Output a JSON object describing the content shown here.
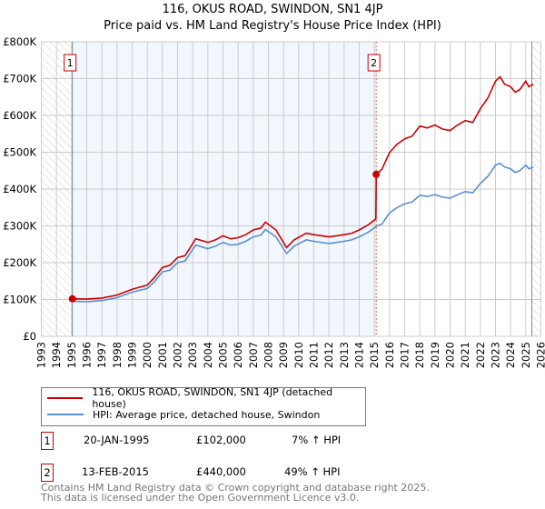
{
  "chart_data": {
    "type": "line",
    "title": "116, OKUS ROAD, SWINDON, SN1 4JP",
    "subtitle": "Price paid vs. HM Land Registry's House Price Index (HPI)",
    "xlim": [
      1993,
      2026
    ],
    "ylim": [
      0,
      800000
    ],
    "x_ticks": [
      "1993",
      "1994",
      "1995",
      "1996",
      "1997",
      "1998",
      "1999",
      "2000",
      "2001",
      "2002",
      "2003",
      "2004",
      "2005",
      "2006",
      "2007",
      "2008",
      "2009",
      "2010",
      "2011",
      "2012",
      "2013",
      "2014",
      "2015",
      "2016",
      "2017",
      "2018",
      "2019",
      "2020",
      "2021",
      "2022",
      "2023",
      "2024",
      "2025",
      "2026"
    ],
    "y_ticks": [
      {
        "value": 0,
        "label": "£0"
      },
      {
        "value": 100000,
        "label": "£100K"
      },
      {
        "value": 200000,
        "label": "£200K"
      },
      {
        "value": 300000,
        "label": "£300K"
      },
      {
        "value": 400000,
        "label": "£400K"
      },
      {
        "value": 500000,
        "label": "£500K"
      },
      {
        "value": 600000,
        "label": "£600K"
      },
      {
        "value": 700000,
        "label": "£700K"
      },
      {
        "value": 800000,
        "label": "£800K"
      }
    ],
    "grid": true,
    "series": [
      {
        "name": "116, OKUS ROAD, SWINDON, SN1 4JP (detached house)",
        "color": "#cc0000",
        "x": [
          1995.05,
          1996,
          1997,
          1998,
          1999,
          2000,
          2000.5,
          2001,
          2001.5,
          2002,
          2002.5,
          2003.2,
          2004,
          2004.5,
          2005,
          2005.5,
          2006,
          2006.5,
          2007,
          2007.5,
          2007.8,
          2008.5,
          2009.2,
          2009.7,
          2010.5,
          2011,
          2012,
          2012.5,
          2013,
          2013.5,
          2014,
          2014.6,
          2015.1,
          2015.12,
          2015.5,
          2016,
          2016.5,
          2017,
          2017.5,
          2018,
          2018.5,
          2019,
          2019.5,
          2020,
          2020.5,
          2021,
          2021.5,
          2022,
          2022.5,
          2023,
          2023.3,
          2023.6,
          2024,
          2024.3,
          2024.6,
          2025,
          2025.2,
          2025.5
        ],
        "y": [
          102000,
          101000,
          104000,
          112000,
          128000,
          139000,
          161000,
          187000,
          193000,
          214000,
          219000,
          265000,
          255000,
          262000,
          273000,
          265000,
          268000,
          276000,
          289000,
          294000,
          310000,
          289000,
          241000,
          262000,
          280000,
          276000,
          270000,
          273000,
          276000,
          280000,
          289000,
          303000,
          319000,
          440000,
          454000,
          499000,
          522000,
          536000,
          544000,
          571000,
          566000,
          574000,
          563000,
          559000,
          574000,
          586000,
          581000,
          618000,
          648000,
          693000,
          705000,
          685000,
          678000,
          663000,
          670000,
          693000,
          678000,
          685000
        ]
      },
      {
        "name": "HPI: Average price, detached house, Swindon",
        "color": "#5b8fd4",
        "x": [
          1995.05,
          1996,
          1997,
          1998,
          1999,
          2000,
          2000.5,
          2001,
          2001.5,
          2002,
          2002.5,
          2003.2,
          2004,
          2004.5,
          2005,
          2005.5,
          2006,
          2006.5,
          2007,
          2007.5,
          2007.8,
          2008.5,
          2009.2,
          2009.7,
          2010.5,
          2011,
          2012,
          2012.5,
          2013,
          2013.5,
          2014,
          2014.6,
          2015.1,
          2015.5,
          2016,
          2016.5,
          2017,
          2017.5,
          2018,
          2018.5,
          2019,
          2019.5,
          2020,
          2020.5,
          2021,
          2021.5,
          2022,
          2022.5,
          2023,
          2023.3,
          2023.6,
          2024,
          2024.3,
          2024.6,
          2025,
          2025.2,
          2025.5
        ],
        "y": [
          95000,
          94000,
          97000,
          105000,
          120000,
          130000,
          150000,
          175000,
          180000,
          200000,
          205000,
          248000,
          238000,
          245000,
          255000,
          248000,
          250000,
          258000,
          270000,
          275000,
          290000,
          270000,
          225000,
          245000,
          262000,
          258000,
          252000,
          255000,
          258000,
          262000,
          270000,
          283000,
          298000,
          305000,
          335000,
          350000,
          360000,
          365000,
          383000,
          380000,
          385000,
          378000,
          375000,
          385000,
          393000,
          390000,
          415000,
          435000,
          465000,
          470000,
          460000,
          455000,
          445000,
          450000,
          465000,
          455000,
          460000
        ]
      }
    ],
    "sales": [
      {
        "id": "1",
        "x": 1995.05,
        "y": 102000
      },
      {
        "id": "2",
        "x": 2015.12,
        "y": 440000
      }
    ],
    "shaded_range": [
      1995.05,
      2015.12
    ],
    "hatched_before": 1995.0,
    "hatched_after": 2025.4,
    "legend_position": "bottom"
  },
  "transactions": [
    {
      "id": "1",
      "date": "20-JAN-1995",
      "price": "£102,000",
      "hpi": "7% ↑ HPI"
    },
    {
      "id": "2",
      "date": "13-FEB-2015",
      "price": "£440,000",
      "hpi": "49% ↑ HPI"
    }
  ],
  "footer": {
    "line1": "Contains HM Land Registry data © Crown copyright and database right 2025.",
    "line2": "This data is licensed under the Open Government Licence v3.0."
  }
}
